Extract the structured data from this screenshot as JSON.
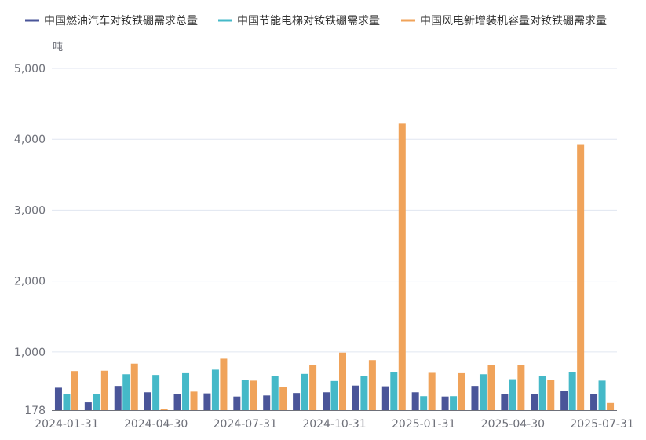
{
  "chart_data": {
    "type": "bar",
    "unit": "吨",
    "legend_position": "top",
    "grid": true,
    "ylim": [
      178,
      5000
    ],
    "yticks": [
      178,
      1000,
      2000,
      3000,
      4000,
      5000
    ],
    "ytick_labels": [
      "178",
      "1,000",
      "2,000",
      "3,000",
      "4,000",
      "5,000"
    ],
    "categories": [
      "2024-01-31",
      "2024-02-29",
      "2024-03-31",
      "2024-04-30",
      "2024-05-31",
      "2024-06-30",
      "2024-07-31",
      "2024-08-31",
      "2024-09-30",
      "2024-10-31",
      "2024-11-30",
      "2024-12-31",
      "2025-01-31",
      "2025-02-28",
      "2025-03-31",
      "2025-04-30",
      "2025-05-31",
      "2025-06-30",
      "2025-07-31"
    ],
    "xtick_labels": [
      "2024-01-31",
      "2024-04-30",
      "2024-07-31",
      "2024-10-31",
      "2025-01-31",
      "2025-04-30",
      "2025-07-31"
    ],
    "series": [
      {
        "name": "中国燃油汽车对钕铁硼需求总量",
        "color": "#4a5599",
        "values": [
          495,
          288,
          520,
          430,
          405,
          415,
          370,
          385,
          420,
          430,
          525,
          515,
          430,
          370,
          520,
          410,
          405,
          455,
          405
        ]
      },
      {
        "name": "中国节能电梯对钕铁硼需求量",
        "color": "#45b9c8",
        "values": [
          405,
          410,
          685,
          675,
          700,
          750,
          605,
          665,
          690,
          590,
          665,
          710,
          375,
          375,
          685,
          615,
          655,
          720,
          595
        ]
      },
      {
        "name": "中国风电新增装机容量对钕铁硼需求量",
        "color": "#f0a35a",
        "values": [
          730,
          735,
          835,
          200,
          440,
          905,
          595,
          510,
          820,
          990,
          885,
          4220,
          705,
          700,
          810,
          815,
          610,
          3930,
          280
        ]
      }
    ]
  }
}
